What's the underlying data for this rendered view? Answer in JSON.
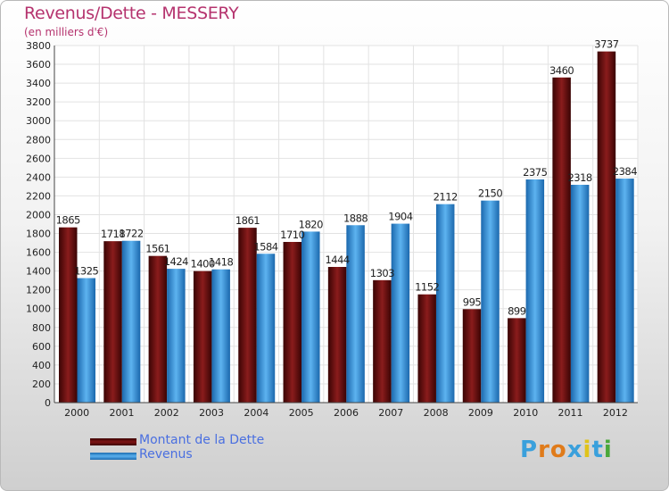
{
  "header": {
    "title": "Revenus/Dette - MESSERY",
    "subtitle": "(en milliers d'€)"
  },
  "chart_data": {
    "type": "bar",
    "categories": [
      "2000",
      "2001",
      "2002",
      "2003",
      "2004",
      "2005",
      "2006",
      "2007",
      "2008",
      "2009",
      "2010",
      "2011",
      "2012"
    ],
    "series": [
      {
        "name": "Montant de la Dette",
        "color": "#6b0d0d",
        "values": [
          1865,
          1718,
          1561,
          1400,
          1861,
          1710,
          1444,
          1303,
          1152,
          995,
          899,
          3460,
          3737
        ]
      },
      {
        "name": "Revenus",
        "color": "#3a97de",
        "values": [
          1325,
          1722,
          1424,
          1418,
          1584,
          1820,
          1888,
          1904,
          2112,
          2150,
          2375,
          2318,
          2384
        ]
      }
    ],
    "ylim": [
      0,
      3800
    ],
    "ytick_step": 200,
    "grid": true,
    "legend_position": "bottom-left",
    "xlabel": "",
    "ylabel": ""
  },
  "legend": {
    "items": [
      {
        "label": "Montant de la Dette",
        "color": "#6b0d0d"
      },
      {
        "label": "Revenus",
        "color": "#3a97de"
      }
    ]
  },
  "logo": {
    "letters": [
      "P",
      "r",
      "o",
      "x",
      "i",
      "t",
      "i"
    ],
    "colors": [
      "#3aa0dc",
      "#e07b1a",
      "#e07b1a",
      "#3aa0dc",
      "#e0c31a",
      "#3aa0dc",
      "#4aa83a"
    ]
  }
}
